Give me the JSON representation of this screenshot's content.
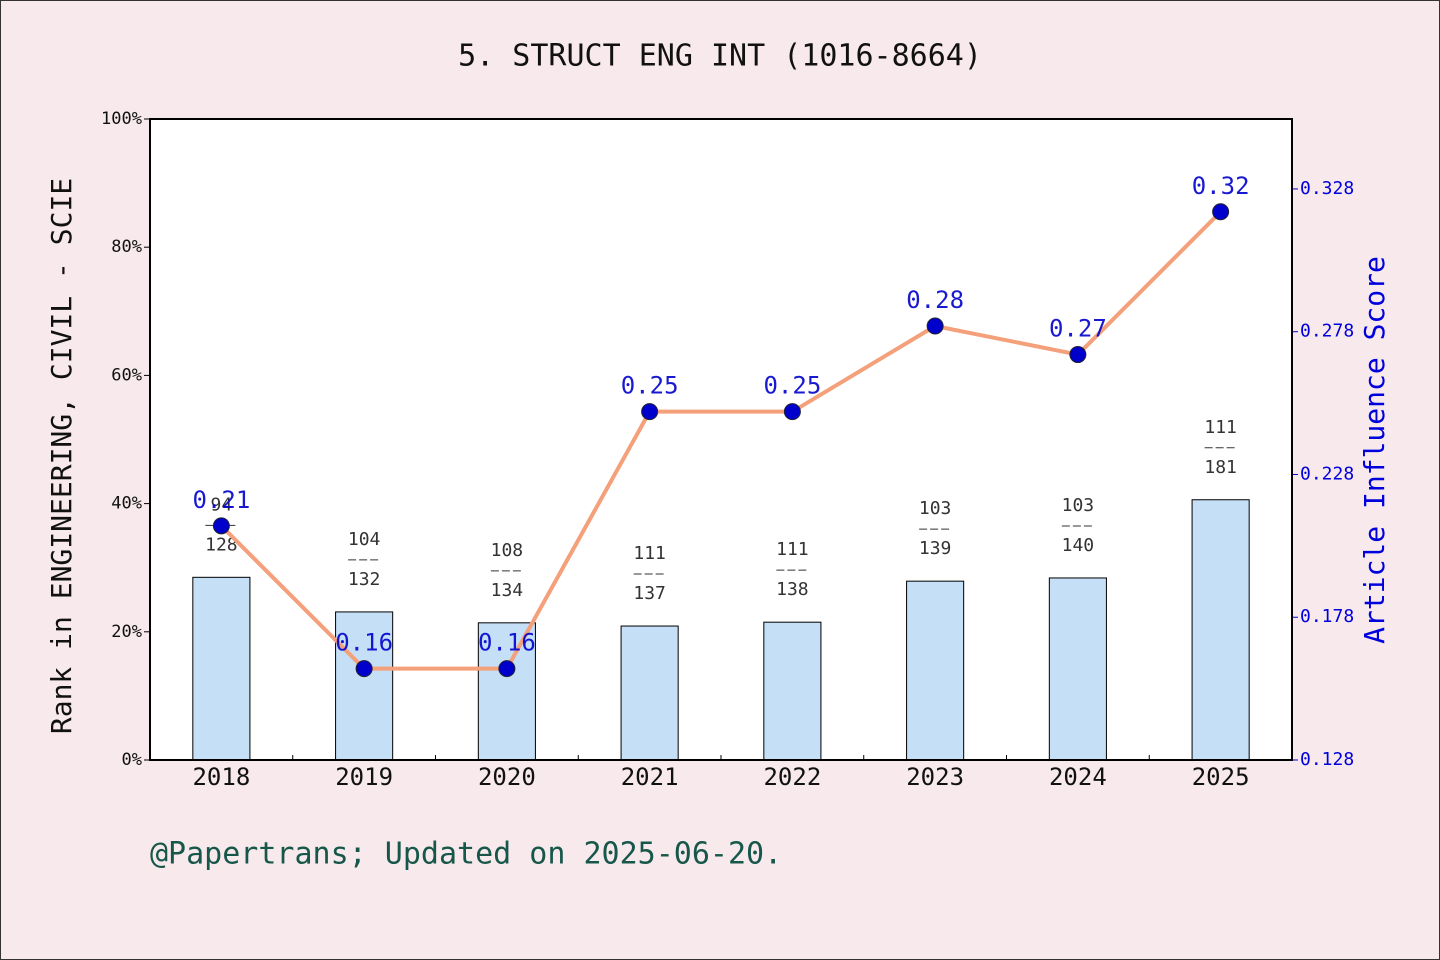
{
  "chart_data": {
    "type": "bar-line",
    "title": "5. STRUCT ENG INT (1016-8664)",
    "y_label": "Rank in ENGINEERING, CIVIL - SCIE",
    "y2_label": "Article Influence Score",
    "footer": "@Papertrans; Updated on 2025-06-20.",
    "categories": [
      "2018",
      "2019",
      "2020",
      "2021",
      "2022",
      "2023",
      "2024",
      "2025"
    ],
    "series": [
      {
        "name": "Rank",
        "type": "bar",
        "color": "#c5dff7",
        "values": [
          28.5,
          23.1,
          21.4,
          20.9,
          21.5,
          27.9,
          28.4,
          40.6
        ],
        "rank": [
          94,
          104,
          108,
          111,
          111,
          103,
          103,
          111
        ],
        "total": [
          128,
          132,
          134,
          137,
          138,
          139,
          140,
          181
        ]
      },
      {
        "name": "Article Influence Score",
        "type": "line",
        "axis": "y2",
        "color": "#f4a07a",
        "marker_color": "#0000cc",
        "values": [
          0.21,
          0.16,
          0.16,
          0.25,
          0.25,
          0.28,
          0.27,
          0.32
        ]
      }
    ],
    "ylim": [
      0,
      100
    ],
    "yticks": [
      {
        "value": 0,
        "label": "0%"
      },
      {
        "value": 20,
        "label": "20%"
      },
      {
        "value": 40,
        "label": "40%"
      },
      {
        "value": 60,
        "label": "60%"
      },
      {
        "value": 80,
        "label": "80%"
      },
      {
        "value": 100,
        "label": "100%"
      }
    ],
    "y2lim": [
      0.128,
      0.3525
    ],
    "y2ticks": [
      0.128,
      0.178,
      0.228,
      0.278,
      0.328
    ]
  }
}
